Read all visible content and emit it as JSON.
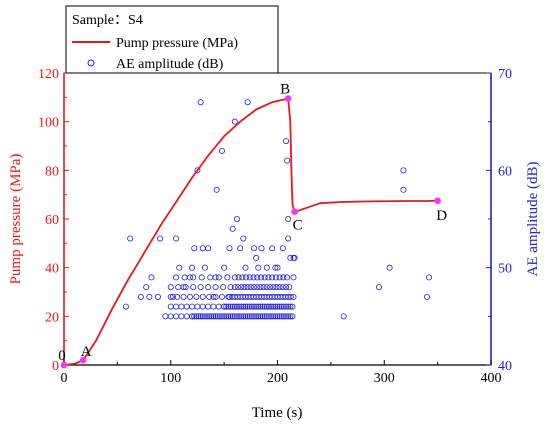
{
  "chart_data": {
    "type": "line",
    "legend": {
      "placement": "top-left",
      "sample_label": "Sample：S4",
      "line_label": "Pump pressure (MPa)",
      "scatter_label": "AE amplitude (dB)"
    },
    "xlabel": "Time (s)",
    "ylabel_left": "Pump pressure (MPa)",
    "ylabel_right": "AE amplitude (dB)",
    "xlim": [
      0,
      400
    ],
    "ylim_left": [
      0,
      120
    ],
    "ylim_right": [
      40,
      70
    ],
    "x_ticks": [
      "0",
      "100",
      "200",
      "300",
      "400"
    ],
    "x_tick_values": [
      0,
      100,
      200,
      300,
      400
    ],
    "y_left_ticks": [
      "0",
      "20",
      "40",
      "60",
      "80",
      "100",
      "120"
    ],
    "y_left_tick_values": [
      0,
      20,
      40,
      60,
      80,
      100,
      120
    ],
    "y_right_ticks": [
      "40",
      "50",
      "60",
      "70"
    ],
    "y_right_tick_values": [
      40,
      50,
      60,
      70
    ],
    "grid": false,
    "colors": {
      "pressure": "#e31a1c",
      "ae": "#2222dd",
      "marker": "#ff33ff",
      "left_axis": "#e31a1c",
      "right_axis": "#2222dd",
      "bottom_axis": "#000000"
    },
    "pressure_series": {
      "name": "Pump pressure (MPa)",
      "x": [
        0,
        10,
        18,
        30,
        45,
        60,
        75,
        90,
        105,
        120,
        135,
        150,
        165,
        180,
        195,
        205,
        210,
        212,
        213,
        214,
        216,
        220,
        230,
        240,
        260,
        280,
        300,
        320,
        340,
        350
      ],
      "y": [
        0,
        0.5,
        2,
        10,
        23,
        35,
        46,
        57,
        67,
        77,
        86,
        94,
        100,
        105,
        108,
        109,
        109.5,
        100,
        80,
        66,
        63,
        63.5,
        65,
        66.5,
        67,
        67.2,
        67.3,
        67.4,
        67.4,
        67.5
      ]
    },
    "ae_series": {
      "name": "AE amplitude (dB)",
      "dense_rows": [
        {
          "y": 45,
          "x_from": 120,
          "x_to": 215,
          "step": 2
        },
        {
          "y": 45,
          "x_from": 95,
          "x_to": 120,
          "step": 5
        },
        {
          "y": 46,
          "x_from": 150,
          "x_to": 215,
          "step": 2
        },
        {
          "y": 46,
          "x_from": 100,
          "x_to": 150,
          "step": 5
        },
        {
          "y": 47,
          "x_from": 155,
          "x_to": 215,
          "step": 2.5
        },
        {
          "y": 47,
          "x_from": 100,
          "x_to": 155,
          "step": 6
        },
        {
          "y": 48,
          "x_from": 160,
          "x_to": 212,
          "step": 3
        },
        {
          "y": 48,
          "x_from": 100,
          "x_to": 160,
          "step": 7
        },
        {
          "y": 49,
          "x_from": 160,
          "x_to": 212,
          "step": 3.5
        },
        {
          "y": 49,
          "x_from": 105,
          "x_to": 160,
          "step": 8
        }
      ],
      "points": [
        [
          58,
          46
        ],
        [
          62,
          53
        ],
        [
          72,
          47
        ],
        [
          77,
          48
        ],
        [
          80,
          47
        ],
        [
          82,
          49
        ],
        [
          88,
          47
        ],
        [
          90,
          53
        ],
        [
          102,
          47
        ],
        [
          105,
          53
        ],
        [
          108,
          50
        ],
        [
          112,
          48
        ],
        [
          118,
          49
        ],
        [
          120,
          50
        ],
        [
          122,
          52
        ],
        [
          125,
          60
        ],
        [
          128,
          67
        ],
        [
          130,
          52
        ],
        [
          132,
          50
        ],
        [
          135,
          52
        ],
        [
          140,
          47
        ],
        [
          142,
          49
        ],
        [
          143,
          58
        ],
        [
          148,
          62
        ],
        [
          150,
          50
        ],
        [
          155,
          52
        ],
        [
          158,
          54
        ],
        [
          160,
          65
        ],
        [
          162,
          55
        ],
        [
          165,
          52
        ],
        [
          168,
          53
        ],
        [
          170,
          50
        ],
        [
          172,
          67
        ],
        [
          178,
          52
        ],
        [
          180,
          51
        ],
        [
          182,
          50
        ],
        [
          185,
          52
        ],
        [
          190,
          50
        ],
        [
          195,
          52
        ],
        [
          198,
          50
        ],
        [
          200,
          50
        ],
        [
          205,
          52
        ],
        [
          208,
          63
        ],
        [
          209,
          61
        ],
        [
          210,
          55
        ],
        [
          210,
          53
        ],
        [
          212,
          51
        ],
        [
          215,
          51
        ],
        [
          215,
          49
        ],
        [
          216,
          51
        ],
        [
          262,
          45
        ],
        [
          295,
          48
        ],
        [
          305,
          50
        ],
        [
          318,
          60
        ],
        [
          318,
          58
        ],
        [
          340,
          47
        ],
        [
          342,
          49
        ]
      ]
    },
    "annotations": [
      {
        "label": "0",
        "x": 0,
        "y": 0
      },
      {
        "label": "A",
        "x": 18,
        "y": 2
      },
      {
        "label": "B",
        "x": 210,
        "y": 109.5
      },
      {
        "label": "C",
        "x": 216,
        "y": 63
      },
      {
        "label": "D",
        "x": 350,
        "y": 67.5
      }
    ]
  }
}
